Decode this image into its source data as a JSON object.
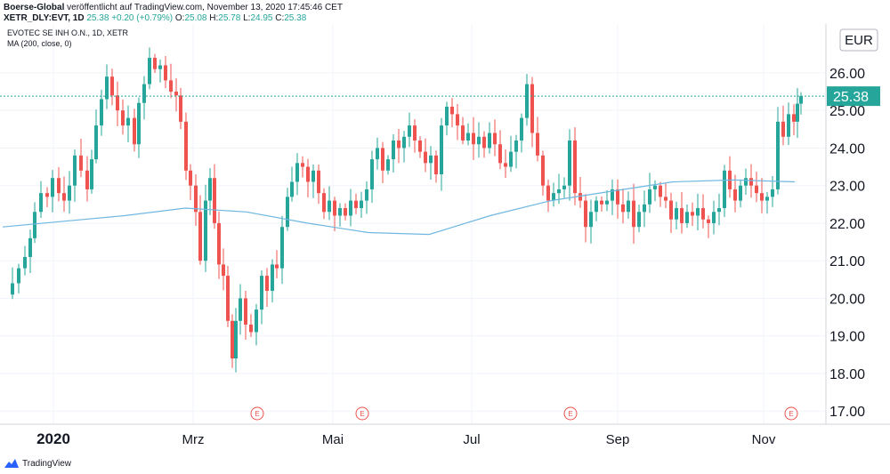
{
  "header": {
    "publisher": "Boerse-Global",
    "published_text": "veröffentlicht auf TradingView.com, November 13, 2020 17:45:46 CET",
    "symbol": "XETR_DLY:EVT, 1D",
    "last": "25.38",
    "change": "+0.20 (+0.79%)",
    "o_label": "O:",
    "open": "25.08",
    "h_label": "H:",
    "high": "25.78",
    "l_label": "L:",
    "low": "24.95",
    "c_label": "C:",
    "close": "25.38"
  },
  "chart_legend": {
    "instrument": "EVOTEC SE INH O.N., 1D, XETR",
    "indicator": "MA (200, close, 0)"
  },
  "footer": {
    "brand": "TradingView"
  },
  "colors": {
    "up": "#26a69a",
    "down": "#ef5350",
    "ma": "#6fb7e0",
    "grid": "#f0f3fa",
    "axis": "#8a8e99",
    "price_line": "#26a69a"
  },
  "chart_data": {
    "type": "candlestick",
    "currency": "EUR",
    "y_ticks": [
      "17.00",
      "18.00",
      "19.00",
      "20.00",
      "21.00",
      "22.00",
      "23.00",
      "24.00",
      "25.00",
      "26.00"
    ],
    "ylim": [
      16.65,
      27.3
    ],
    "x_ticks": [
      "2020",
      "Mrz",
      "Mai",
      "Jul",
      "Sep",
      "Nov"
    ],
    "last_price_label": "25.38",
    "event_marker_label": "E",
    "events_count": 4,
    "series": [
      {
        "name": "MA (200, close, 0)",
        "approx_values": [
          21.9,
          22.05,
          22.2,
          22.4,
          22.3,
          22.0,
          21.75,
          21.7,
          22.2,
          22.6,
          22.85,
          23.1,
          23.15,
          23.1
        ]
      }
    ]
  }
}
